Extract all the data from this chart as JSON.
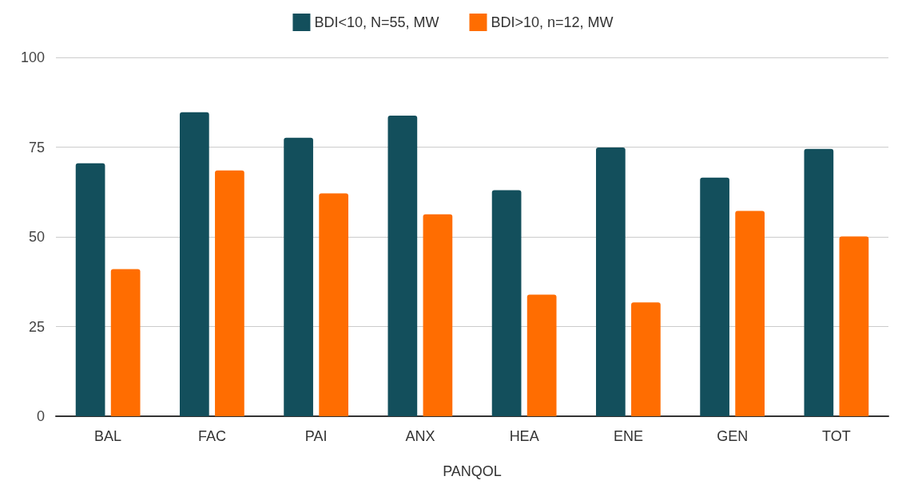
{
  "chart_data": {
    "type": "bar",
    "xlabel": "PANQOL",
    "categories": [
      "BAL",
      "FAC",
      "PAI",
      "ANX",
      "HEA",
      "ENE",
      "GEN",
      "TOT"
    ],
    "series": [
      {
        "name": "BDI<10, N=55, MW",
        "color": "#134f5c",
        "values": [
          70.5,
          84.7,
          77.6,
          83.8,
          63,
          74.9,
          66.5,
          74.5
        ]
      },
      {
        "name": "BDI>10, n=12, MW",
        "color": "#ff6d01",
        "values": [
          41,
          68.5,
          62.1,
          56.3,
          33.9,
          31.7,
          57.2,
          50.1
        ]
      }
    ],
    "ylim": [
      0,
      100
    ],
    "yticks": [
      0,
      25,
      50,
      75,
      100
    ],
    "grid": "y",
    "legend": "top"
  }
}
